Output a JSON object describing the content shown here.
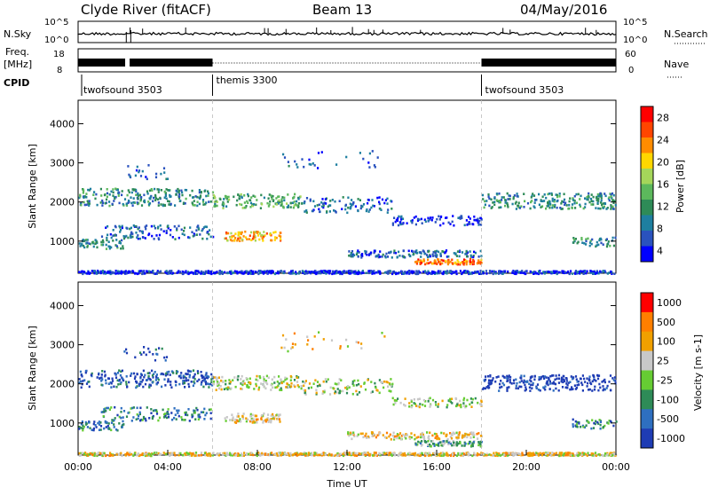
{
  "header": {
    "station": "Clyde River (fitACF)",
    "beam": "Beam 13",
    "date": "04/May/2016"
  },
  "chart_data": [
    {
      "type": "line",
      "panel": "nsky",
      "left_label": "N.Sky",
      "right_label": "N.Search",
      "left_ticks": [
        "10^5",
        "10^0"
      ],
      "right_ticks": [
        "10^5",
        "10^0"
      ]
    },
    {
      "type": "line",
      "panel": "freq",
      "left_label_top": "Freq.",
      "left_label_bottom": "[MHz]",
      "right_label": "Nave",
      "left_ticks": [
        "18",
        "8"
      ],
      "right_ticks": [
        "60",
        "0"
      ],
      "cpid_label": "CPID",
      "programs": [
        {
          "name": "twofsound 3503",
          "start": 0,
          "end": 6
        },
        {
          "name": "themis 3300",
          "start": 6,
          "end": 18
        },
        {
          "name": "twofsound 3503",
          "start": 18,
          "end": 24
        }
      ]
    },
    {
      "type": "heatmap",
      "panel": "power",
      "ylabel": "Slant Range [km]",
      "yticks": [
        1000,
        2000,
        3000,
        4000
      ],
      "ylim": [
        180,
        4600
      ],
      "xlim": [
        0,
        24
      ],
      "colorbar_label": "Power [dB]",
      "colorbar_ticks": [
        "28",
        "24",
        "20",
        "16",
        "12",
        "8",
        "4"
      ],
      "colors": [
        "#0000ff",
        "#2a52be",
        "#1e7fa0",
        "#2e8b57",
        "#5cb85c",
        "#a5d65a",
        "#ffd700",
        "#ff8c00",
        "#ff4500",
        "#ff0000"
      ]
    },
    {
      "type": "heatmap",
      "panel": "velocity",
      "ylabel": "Slant Range [km]",
      "xlabel": "Time UT",
      "yticks": [
        1000,
        2000,
        3000,
        4000
      ],
      "ylim": [
        180,
        4600
      ],
      "xlim": [
        0,
        24
      ],
      "xticks": [
        "00:00",
        "04:00",
        "08:00",
        "12:00",
        "16:00",
        "20:00",
        "00:00"
      ],
      "colorbar_label": "Velocity [m s-1]",
      "colorbar_ticks": [
        "1000",
        "500",
        "100",
        "25",
        "-25",
        "-100",
        "-500",
        "-1000"
      ],
      "colors": [
        "#1e3cb4",
        "#2e6fc0",
        "#2e8b57",
        "#66cc33",
        "#c8c8c8",
        "#f0a000",
        "#ff7f00",
        "#ff0000"
      ]
    }
  ]
}
